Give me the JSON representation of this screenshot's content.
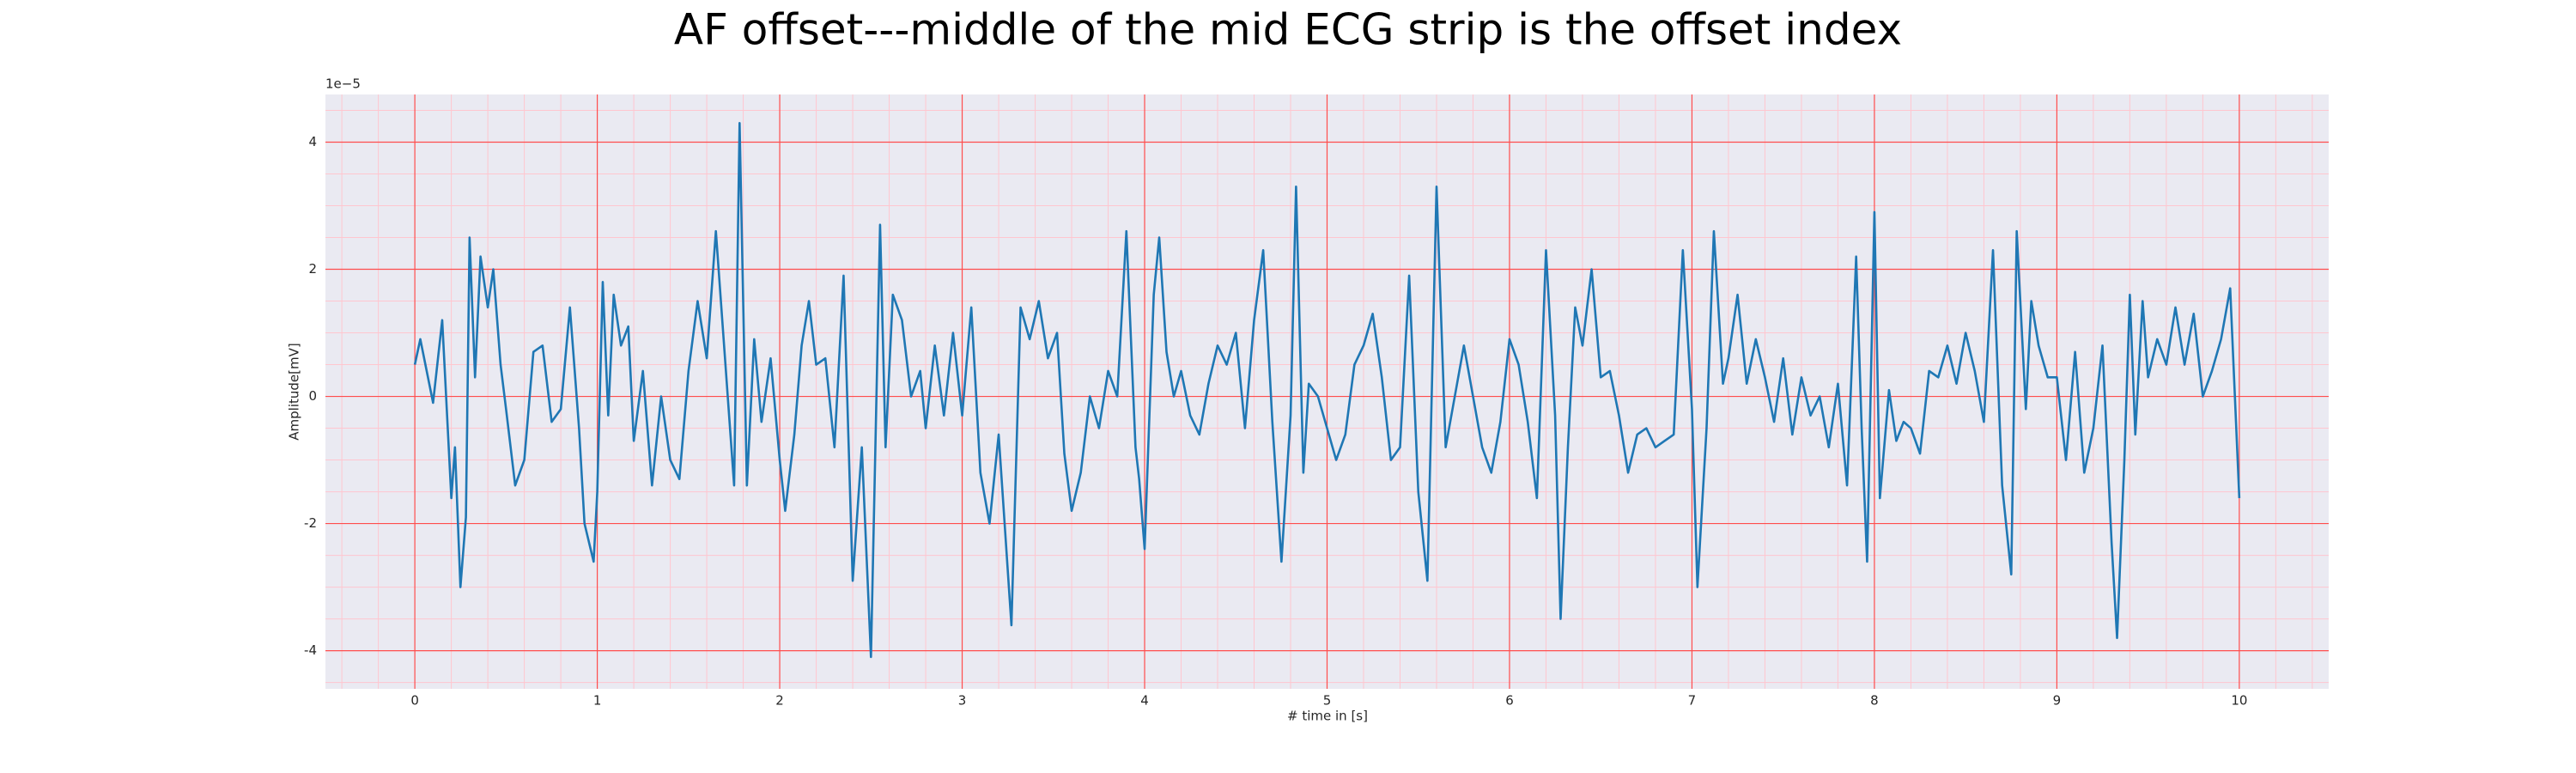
{
  "chart_data": {
    "type": "line",
    "title": "AF offset---middle of the mid ECG strip is the offset index",
    "xlabel": "# time in [s]",
    "ylabel": "Amplitude[mV]",
    "y_offset_label": "1e−5",
    "background": "#eaeaf2",
    "grid": true,
    "grid_color": "#ff4d4d",
    "minor_grid_color": "#ffc6cf",
    "xlim": [
      -0.49,
      10.49
    ],
    "ylim": [
      -4.6,
      4.75
    ],
    "xticks": [
      0,
      1,
      2,
      3,
      4,
      5,
      6,
      7,
      8,
      9,
      10
    ],
    "yticks": [
      -4,
      -2,
      0,
      2,
      4
    ],
    "xminorticks": [
      -0.4,
      -0.2,
      0.2,
      0.4,
      0.6,
      0.8,
      1.2,
      1.4,
      1.6,
      1.8,
      2.2,
      2.4,
      2.6,
      2.8,
      3.2,
      3.4,
      3.6,
      3.8,
      4.2,
      4.4,
      4.6,
      4.8,
      5.2,
      5.4,
      5.6,
      5.8,
      6.2,
      6.4,
      6.6,
      6.8,
      7.2,
      7.4,
      7.6,
      7.8,
      8.2,
      8.4,
      8.6,
      8.8,
      9.2,
      9.4,
      9.6,
      9.8,
      10.2,
      10.4
    ],
    "yminorticks": [
      -4.5,
      -3.5,
      -3,
      -2.5,
      -1.5,
      -1,
      -0.5,
      0.5,
      1,
      1.5,
      2.5,
      3,
      3.5,
      4.5
    ],
    "x": [
      0,
      0.03,
      0.1,
      0.15,
      0.2,
      0.22,
      0.25,
      0.28,
      0.3,
      0.33,
      0.36,
      0.4,
      0.43,
      0.47,
      0.5,
      0.55,
      0.6,
      0.65,
      0.7,
      0.75,
      0.8,
      0.85,
      0.9,
      0.93,
      0.98,
      1.0,
      1.03,
      1.06,
      1.09,
      1.13,
      1.17,
      1.2,
      1.25,
      1.3,
      1.35,
      1.4,
      1.45,
      1.5,
      1.55,
      1.6,
      1.65,
      1.7,
      1.75,
      1.78,
      1.82,
      1.86,
      1.9,
      1.95,
      2.0,
      2.03,
      2.08,
      2.12,
      2.16,
      2.2,
      2.25,
      2.3,
      2.35,
      2.4,
      2.45,
      2.5,
      2.55,
      2.58,
      2.62,
      2.67,
      2.72,
      2.77,
      2.8,
      2.85,
      2.9,
      2.95,
      3.0,
      3.05,
      3.1,
      3.15,
      3.2,
      3.27,
      3.32,
      3.37,
      3.42,
      3.47,
      3.52,
      3.56,
      3.6,
      3.65,
      3.7,
      3.75,
      3.8,
      3.85,
      3.9,
      3.95,
      3.97,
      4.0,
      4.05,
      4.08,
      4.12,
      4.16,
      4.2,
      4.25,
      4.3,
      4.35,
      4.4,
      4.45,
      4.5,
      4.55,
      4.6,
      4.65,
      4.7,
      4.75,
      4.8,
      4.83,
      4.87,
      4.9,
      4.95,
      5.0,
      5.05,
      5.1,
      5.15,
      5.2,
      5.25,
      5.3,
      5.35,
      5.4,
      5.45,
      5.5,
      5.55,
      5.6,
      5.65,
      5.7,
      5.75,
      5.8,
      5.85,
      5.9,
      5.95,
      6.0,
      6.05,
      6.1,
      6.15,
      6.2,
      6.25,
      6.28,
      6.32,
      6.36,
      6.4,
      6.45,
      6.5,
      6.55,
      6.6,
      6.65,
      6.7,
      6.75,
      6.8,
      6.85,
      6.9,
      6.95,
      7.0,
      7.03,
      7.08,
      7.12,
      7.17,
      7.2,
      7.25,
      7.3,
      7.35,
      7.4,
      7.45,
      7.5,
      7.55,
      7.6,
      7.65,
      7.7,
      7.75,
      7.8,
      7.85,
      7.9,
      7.93,
      7.96,
      8.0,
      8.03,
      8.08,
      8.12,
      8.16,
      8.2,
      8.25,
      8.3,
      8.35,
      8.4,
      8.45,
      8.5,
      8.55,
      8.6,
      8.65,
      8.7,
      8.75,
      8.78,
      8.83,
      8.86,
      8.9,
      8.95,
      9.0,
      9.05,
      9.1,
      9.15,
      9.2,
      9.25,
      9.3,
      9.33,
      9.37,
      9.4,
      9.43,
      9.47,
      9.5,
      9.55,
      9.6,
      9.65,
      9.7,
      9.75,
      9.8,
      9.85,
      9.9,
      9.95,
      10.0
    ],
    "series": [
      {
        "color": "#1f77b4",
        "values": [
          0.5,
          0.9,
          -0.1,
          1.2,
          -1.6,
          -0.8,
          -3.0,
          -1.9,
          2.5,
          0.3,
          2.2,
          1.4,
          2.0,
          0.5,
          -0.2,
          -1.4,
          -1.0,
          0.7,
          0.8,
          -0.4,
          -0.2,
          1.4,
          -0.5,
          -2.0,
          -2.6,
          -1.5,
          1.8,
          -0.3,
          1.6,
          0.8,
          1.1,
          -0.7,
          0.4,
          -1.4,
          0.0,
          -1.0,
          -1.3,
          0.4,
          1.5,
          0.6,
          2.6,
          0.6,
          -1.4,
          4.3,
          -1.4,
          0.9,
          -0.4,
          0.6,
          -1.0,
          -1.8,
          -0.6,
          0.8,
          1.5,
          0.5,
          0.6,
          -0.8,
          1.9,
          -2.9,
          -0.8,
          -4.1,
          2.7,
          -0.8,
          1.6,
          1.2,
          0.0,
          0.4,
          -0.5,
          0.8,
          -0.3,
          1.0,
          -0.3,
          1.4,
          -1.2,
          -2.0,
          -0.6,
          -3.6,
          1.4,
          0.9,
          1.5,
          0.6,
          1.0,
          -0.9,
          -1.8,
          -1.2,
          0.0,
          -0.5,
          0.4,
          0.0,
          2.6,
          -0.8,
          -1.3,
          -2.4,
          1.6,
          2.5,
          0.7,
          0.0,
          0.4,
          -0.3,
          -0.6,
          0.2,
          0.8,
          0.5,
          1.0,
          -0.5,
          1.2,
          2.3,
          -0.4,
          -2.6,
          -0.3,
          3.3,
          -1.2,
          0.2,
          0.0,
          -0.5,
          -1.0,
          -0.6,
          0.5,
          0.8,
          1.3,
          0.3,
          -1.0,
          -0.8,
          1.9,
          -1.5,
          -2.9,
          3.3,
          -0.8,
          0.0,
          0.8,
          0.0,
          -0.8,
          -1.2,
          -0.4,
          0.9,
          0.5,
          -0.4,
          -1.6,
          2.3,
          -0.3,
          -3.5,
          -0.8,
          1.4,
          0.8,
          2.0,
          0.3,
          0.4,
          -0.3,
          -1.2,
          -0.6,
          -0.5,
          -0.8,
          -0.7,
          -0.6,
          2.3,
          -0.2,
          -3.0,
          -0.5,
          2.6,
          0.2,
          0.6,
          1.6,
          0.2,
          0.9,
          0.3,
          -0.4,
          0.6,
          -0.6,
          0.3,
          -0.3,
          0.0,
          -0.8,
          0.2,
          -1.4,
          2.2,
          -0.5,
          -2.6,
          2.9,
          -1.6,
          0.1,
          -0.7,
          -0.4,
          -0.5,
          -0.9,
          0.4,
          0.3,
          0.8,
          0.2,
          1.0,
          0.4,
          -0.4,
          2.3,
          -1.4,
          -2.8,
          2.6,
          -0.2,
          1.5,
          0.8,
          0.3,
          0.3,
          -1.0,
          0.7,
          -1.2,
          -0.5,
          0.8,
          -2.3,
          -3.8,
          -1.0,
          1.6,
          -0.6,
          1.5,
          0.3,
          0.9,
          0.5,
          1.4,
          0.5,
          1.3,
          0.0,
          0.4,
          0.9,
          1.7,
          -1.6
        ]
      }
    ]
  }
}
